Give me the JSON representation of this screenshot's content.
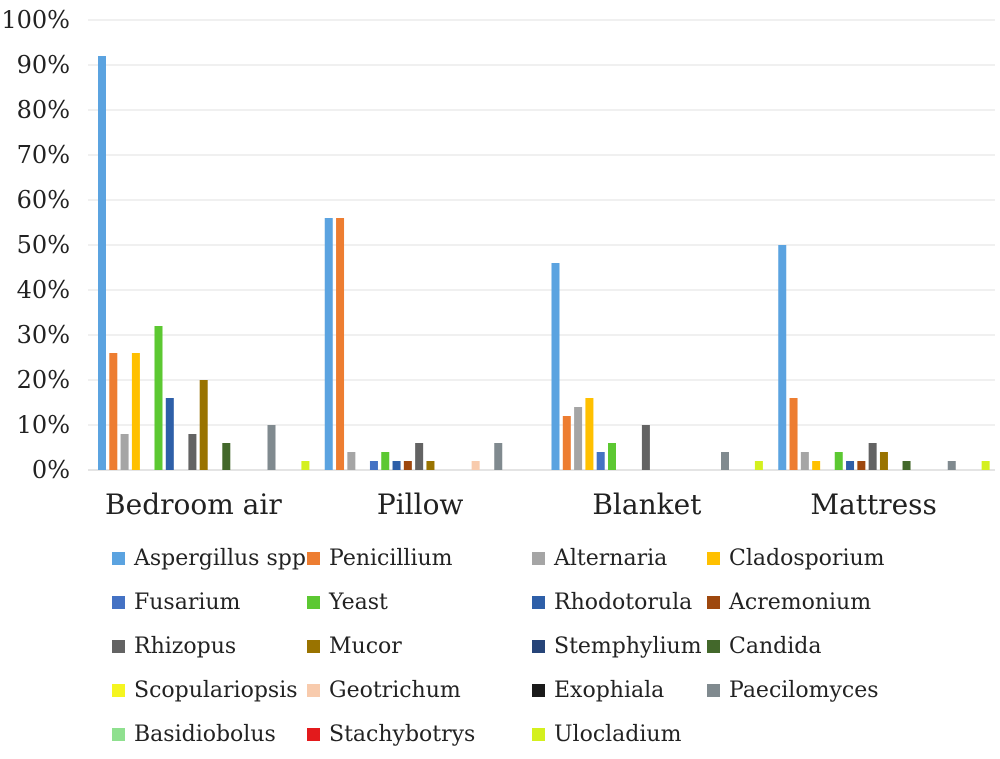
{
  "chart_data": {
    "type": "bar",
    "categories": [
      "Bedroom air",
      "Pillow",
      "Blanket",
      "Mattress"
    ],
    "ylim": [
      0,
      100
    ],
    "yticks": [
      "0%",
      "10%",
      "20%",
      "30%",
      "40%",
      "50%",
      "60%",
      "70%",
      "80%",
      "90%",
      "100%"
    ],
    "grid": true,
    "legend_position": "bottom",
    "series": [
      {
        "name": "Aspergillus spp",
        "color": "#5BA3E0",
        "values": [
          92,
          56,
          46,
          50
        ]
      },
      {
        "name": "Penicillium",
        "color": "#ED7D31",
        "values": [
          26,
          56,
          12,
          16
        ]
      },
      {
        "name": "Alternaria",
        "color": "#A5A5A5",
        "values": [
          8,
          4,
          14,
          4
        ]
      },
      {
        "name": "Cladosporium",
        "color": "#FFC000",
        "values": [
          26,
          0,
          16,
          2
        ]
      },
      {
        "name": "Fusarium",
        "color": "#4472C4",
        "values": [
          0,
          2,
          4,
          0
        ]
      },
      {
        "name": "Yeast",
        "color": "#5CC832",
        "values": [
          32,
          4,
          6,
          4
        ]
      },
      {
        "name": "Rhodotorula",
        "color": "#2E5FA8",
        "values": [
          16,
          2,
          0,
          2
        ]
      },
      {
        "name": "Acremonium",
        "color": "#9E480E",
        "values": [
          0,
          2,
          0,
          2
        ]
      },
      {
        "name": "Rhizopus",
        "color": "#636363",
        "values": [
          8,
          6,
          10,
          6
        ]
      },
      {
        "name": "Mucor",
        "color": "#997300",
        "values": [
          20,
          2,
          0,
          4
        ]
      },
      {
        "name": "Stemphylium",
        "color": "#264478",
        "values": [
          0,
          0,
          0,
          0
        ]
      },
      {
        "name": "Candida",
        "color": "#43682B",
        "values": [
          6,
          0,
          0,
          2
        ]
      },
      {
        "name": "Scopulariopsis",
        "color": "#F5F520",
        "values": [
          0,
          0,
          0,
          0
        ]
      },
      {
        "name": "Geotrichum",
        "color": "#F8CBAD",
        "values": [
          0,
          2,
          0,
          0
        ]
      },
      {
        "name": "Exophiala",
        "color": "#1A1A1A",
        "values": [
          0,
          0,
          0,
          0
        ]
      },
      {
        "name": "Paecilomyces",
        "color": "#808A8F",
        "values": [
          10,
          6,
          4,
          2
        ]
      },
      {
        "name": "Basidiobolus",
        "color": "#8FE08F",
        "values": [
          0,
          0,
          0,
          0
        ]
      },
      {
        "name": "Stachybotrys",
        "color": "#E31A1C",
        "values": [
          0,
          0,
          0,
          0
        ]
      },
      {
        "name": "Ulocladium",
        "color": "#D4F01E",
        "values": [
          2,
          0,
          2,
          2
        ]
      }
    ]
  }
}
